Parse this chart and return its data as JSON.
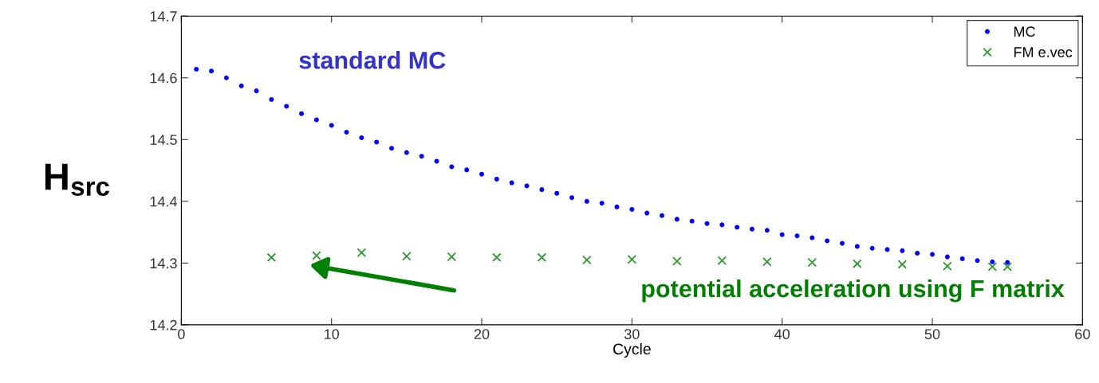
{
  "chart_data": {
    "type": "scatter",
    "xlabel": "Cycle",
    "ylabel": "H$_{src}$",
    "xlim": [
      0,
      60
    ],
    "xticks": [
      0,
      10,
      20,
      30,
      40,
      50,
      60
    ],
    "ylim": [
      14.2,
      14.7
    ],
    "yticks": [
      14.2,
      14.3,
      14.4,
      14.5,
      14.6,
      14.7
    ],
    "grid": false,
    "legend": "top right",
    "series": [
      {
        "name": "MC",
        "color": "#0000ff",
        "marker": "circle",
        "x": [
          1,
          2,
          3,
          4,
          5,
          6,
          7,
          8,
          9,
          10,
          11,
          12,
          13,
          14,
          15,
          16,
          17,
          18,
          19,
          20,
          21,
          22,
          23,
          24,
          25,
          26,
          27,
          28,
          29,
          30,
          31,
          32,
          33,
          34,
          35,
          36,
          37,
          38,
          39,
          40,
          41,
          42,
          43,
          44,
          45,
          46,
          47,
          48,
          49,
          50,
          51,
          52,
          53,
          54,
          55
        ],
        "values": [
          14.614,
          14.611,
          14.6,
          14.587,
          14.579,
          14.565,
          14.554,
          14.542,
          14.532,
          14.523,
          14.512,
          14.503,
          14.496,
          14.486,
          14.479,
          14.473,
          14.465,
          14.456,
          14.451,
          14.444,
          14.436,
          14.43,
          14.425,
          14.419,
          14.413,
          14.406,
          14.4,
          14.397,
          14.391,
          14.387,
          14.381,
          14.377,
          14.371,
          14.368,
          14.364,
          14.362,
          14.358,
          14.355,
          14.353,
          14.346,
          14.344,
          14.341,
          14.336,
          14.332,
          14.327,
          14.324,
          14.322,
          14.32,
          14.316,
          14.314,
          14.31,
          14.307,
          14.304,
          14.302,
          14.301
        ]
      },
      {
        "name": "FM e.vec",
        "color": "#2e9a2e",
        "marker": "cross",
        "x": [
          6,
          9,
          12,
          15,
          18,
          21,
          24,
          27,
          30,
          33,
          36,
          39,
          42,
          45,
          48,
          51,
          54,
          55
        ],
        "values": [
          14.309,
          14.312,
          14.317,
          14.311,
          14.31,
          14.309,
          14.309,
          14.305,
          14.306,
          14.303,
          14.304,
          14.302,
          14.301,
          14.299,
          14.298,
          14.295,
          14.294,
          14.294
        ]
      }
    ],
    "annotations": [
      "standard MC",
      "potential acceleration using F matrix"
    ]
  }
}
